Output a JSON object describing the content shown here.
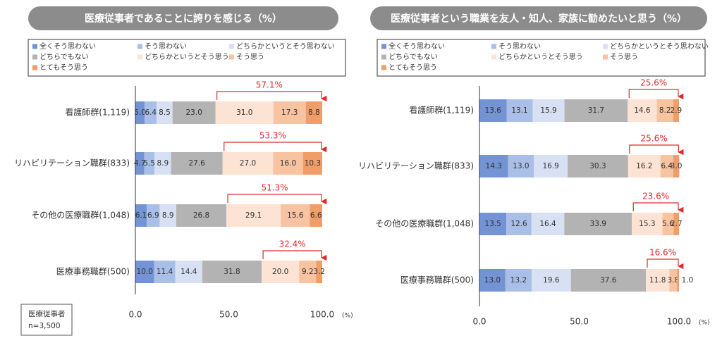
{
  "chart_data": [
    {
      "type": "bar",
      "orientation": "horizontal",
      "stacked": true,
      "title": "医療従事者であることに誇りを感じる（%）",
      "categories": [
        "看護師群(1,119)",
        "リハビリテーション職群(833)",
        "その他の医療職群(1,048)",
        "医療事務職群(500)"
      ],
      "series": [
        {
          "name": "全くそう思わない",
          "color": "#7393d4",
          "values": [
            5.0,
            4.7,
            6.1,
            10.0
          ],
          "value_labels": [
            "5.0",
            "4.7",
            "6.1",
            "10.0"
          ]
        },
        {
          "name": "そう思わない",
          "color": "#a9bfe7",
          "values": [
            6.4,
            5.5,
            6.9,
            11.4
          ],
          "value_labels": [
            "6.4",
            "5.5",
            "6.9",
            "11.4"
          ]
        },
        {
          "name": "どちらかというとそう思わない",
          "color": "#d7e1f3",
          "values": [
            8.5,
            8.9,
            8.9,
            14.4
          ],
          "value_labels": [
            "8.5",
            "8.9",
            "8.9",
            "14.4"
          ]
        },
        {
          "name": "どちらでもない",
          "color": "#b3b3b3",
          "values": [
            23.0,
            27.6,
            26.8,
            31.8
          ],
          "value_labels": [
            "23.0",
            "27.6",
            "26.8",
            "31.8"
          ]
        },
        {
          "name": "どちらかというとそう思う",
          "color": "#fce3d3",
          "values": [
            31.0,
            27.0,
            29.1,
            20.0
          ],
          "value_labels": [
            "31.0",
            "27.0",
            "29.1",
            "20.0"
          ]
        },
        {
          "name": "そう思う",
          "color": "#f7c3a0",
          "values": [
            17.3,
            16.0,
            15.6,
            9.2
          ],
          "value_labels": [
            "17.3",
            "16.0",
            "15.6",
            "9.2"
          ]
        },
        {
          "name": "とてもそう思う",
          "color": "#f19d69",
          "values": [
            8.8,
            10.3,
            6.6,
            3.2
          ],
          "value_labels": [
            "8.8",
            "10.3",
            "6.6",
            "3.2"
          ]
        }
      ],
      "bracket_labels": [
        "57.1%",
        "53.3%",
        "51.3%",
        "32.4%"
      ],
      "xlim": [
        0,
        100
      ],
      "xticks": [
        {
          "value": 0,
          "label": "0.0"
        },
        {
          "value": 50,
          "label": "50.0"
        },
        {
          "value": 100,
          "label": "100.0"
        }
      ],
      "x_unit": "(%)"
    },
    {
      "type": "bar",
      "orientation": "horizontal",
      "stacked": true,
      "title": "医療従事者という職業を友人・知人、家族に勧めたいと思う（%）",
      "categories": [
        "看護師群(1,119)",
        "リハビリテーション職群(833)",
        "その他の医療職群(1,048)",
        "医療事務職群(500)"
      ],
      "series": [
        {
          "name": "全くそう思わない",
          "color": "#7393d4",
          "values": [
            13.6,
            14.3,
            13.5,
            13.0
          ],
          "value_labels": [
            "13.6",
            "14.3",
            "13.5",
            "13.0"
          ]
        },
        {
          "name": "そう思わない",
          "color": "#a9bfe7",
          "values": [
            13.1,
            13.0,
            12.6,
            13.2
          ],
          "value_labels": [
            "13.1",
            "13.0",
            "12.6",
            "13.2"
          ]
        },
        {
          "name": "どちらかというとそう思わない",
          "color": "#d7e1f3",
          "values": [
            15.9,
            16.9,
            16.4,
            19.6
          ],
          "value_labels": [
            "15.9",
            "16.9",
            "16.4",
            "19.6"
          ]
        },
        {
          "name": "どちらでもない",
          "color": "#b3b3b3",
          "values": [
            31.7,
            30.3,
            33.9,
            37.6
          ],
          "value_labels": [
            "31.7",
            "30.3",
            "33.9",
            "37.6"
          ]
        },
        {
          "name": "どちらかというとそう思う",
          "color": "#fce3d3",
          "values": [
            14.6,
            16.2,
            15.3,
            11.8
          ],
          "value_labels": [
            "14.6",
            "16.2",
            "15.3",
            "11.8"
          ]
        },
        {
          "name": "そう思う",
          "color": "#f7c3a0",
          "values": [
            8.2,
            6.4,
            5.6,
            3.8
          ],
          "value_labels": [
            "8.2",
            "6.4",
            "5.6",
            "3.8"
          ]
        },
        {
          "name": "とてもそう思う",
          "color": "#f19d69",
          "values": [
            2.9,
            3.0,
            2.7,
            1.0
          ],
          "value_labels": [
            "2.9",
            "3.0",
            "2.7",
            "1.0"
          ]
        }
      ],
      "bracket_labels": [
        "25.6%",
        "25.6%",
        "23.6%",
        "16.6%"
      ],
      "xlim": [
        0,
        100
      ],
      "xticks": [
        {
          "value": 0,
          "label": "0.0"
        },
        {
          "value": 50,
          "label": "50.0"
        },
        {
          "value": 100,
          "label": "100.0"
        }
      ],
      "x_unit": "(%)"
    }
  ],
  "note": [
    "医療従事者",
    "n=3,500"
  ]
}
